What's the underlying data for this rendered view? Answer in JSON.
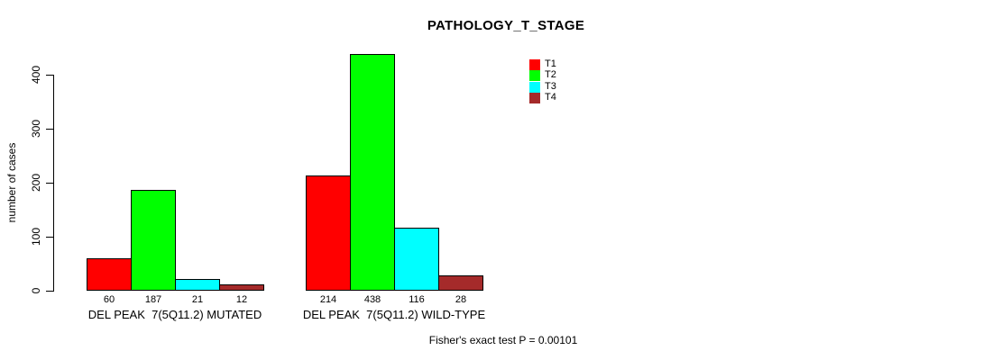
{
  "chart_data": {
    "type": "bar",
    "title": "PATHOLOGY_T_STAGE",
    "xlabel": "",
    "ylabel": "number of cases",
    "ylim": [
      0,
      440
    ],
    "yticks": [
      0,
      100,
      200,
      300,
      400
    ],
    "grid": false,
    "legend_position": "top-right",
    "categories": [
      "DEL PEAK  7(5Q11.2) MUTATED",
      "DEL PEAK  7(5Q11.2) WILD-TYPE"
    ],
    "series": [
      {
        "name": "T1",
        "color": "#ff0000",
        "values": [
          60,
          214
        ]
      },
      {
        "name": "T2",
        "color": "#00ff00",
        "values": [
          187,
          438
        ]
      },
      {
        "name": "T3",
        "color": "#00ffff",
        "values": [
          21,
          116
        ]
      },
      {
        "name": "T4",
        "color": "#a52a2a",
        "values": [
          12,
          28
        ]
      }
    ],
    "bar_value_labels_shown": true,
    "annotation": "Fisher's exact test P = 0.00101"
  }
}
